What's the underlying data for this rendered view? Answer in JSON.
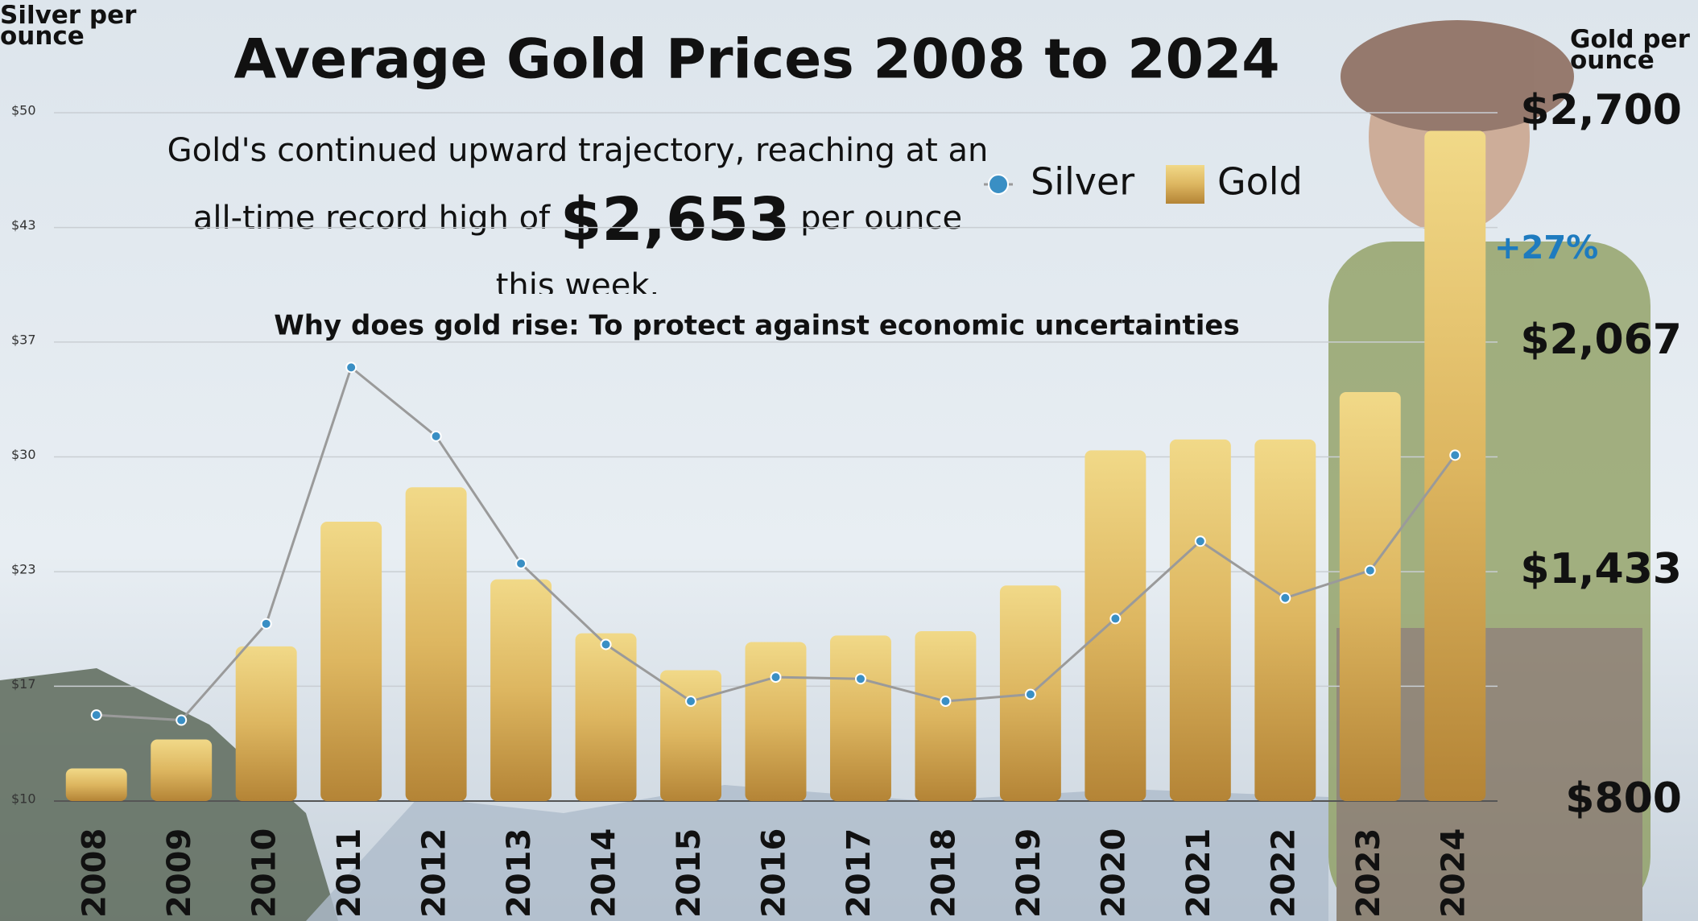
{
  "chart_data": {
    "type": "bar",
    "title": "Average Gold Prices 2008 to 2024",
    "subtitle_before": "Gold's continued upward trajectory, reaching at an all-time record high of",
    "subtitle_highlight": "$2,653",
    "subtitle_after": "per ounce this week.",
    "annotation": "Why does gold rise: To protect against economic uncertainties",
    "change_label": "+27%",
    "y_label": "Silver per ounce",
    "y2_label": "Gold per ounce",
    "categories": [
      "2008",
      "2009",
      "2010",
      "2011",
      "2012",
      "2013",
      "2014",
      "2015",
      "2016",
      "2017",
      "2018",
      "2019",
      "2020",
      "2021",
      "2022",
      "2023",
      "2024"
    ],
    "series": [
      {
        "name": "Silver",
        "type": "line",
        "color": "#3a8fc4",
        "line_color": "#9a9a9a",
        "values": [
          15.0,
          14.7,
          20.3,
          35.2,
          31.2,
          23.8,
          19.1,
          15.8,
          17.2,
          17.1,
          15.8,
          16.2,
          20.6,
          25.1,
          21.8,
          23.4,
          30.1
        ]
      },
      {
        "name": "Gold",
        "type": "bar",
        "axis": "y2",
        "color": "#d4ae55",
        "values": [
          890,
          970,
          1227,
          1571,
          1666,
          1412,
          1263,
          1161,
          1239,
          1257,
          1269,
          1395,
          1768,
          1798,
          1798,
          1929,
          2650
        ]
      }
    ],
    "ylim": [
      10,
      50
    ],
    "yticks": [
      {
        "value": 10,
        "label": "$10"
      },
      {
        "value": 16.67,
        "label": "$17"
      },
      {
        "value": 23.33,
        "label": "$23"
      },
      {
        "value": 30,
        "label": "$30"
      },
      {
        "value": 36.67,
        "label": "$37"
      },
      {
        "value": 43.33,
        "label": "$43"
      },
      {
        "value": 50,
        "label": "$50"
      }
    ],
    "y2lim": [
      800,
      2700
    ],
    "y2ticks": [
      {
        "value": 800,
        "label": "$800"
      },
      {
        "value": 1433.33,
        "label": "$1,433"
      },
      {
        "value": 2066.67,
        "label": "$2,067"
      },
      {
        "value": 2700,
        "label": "$2,700"
      }
    ],
    "grid": true
  }
}
